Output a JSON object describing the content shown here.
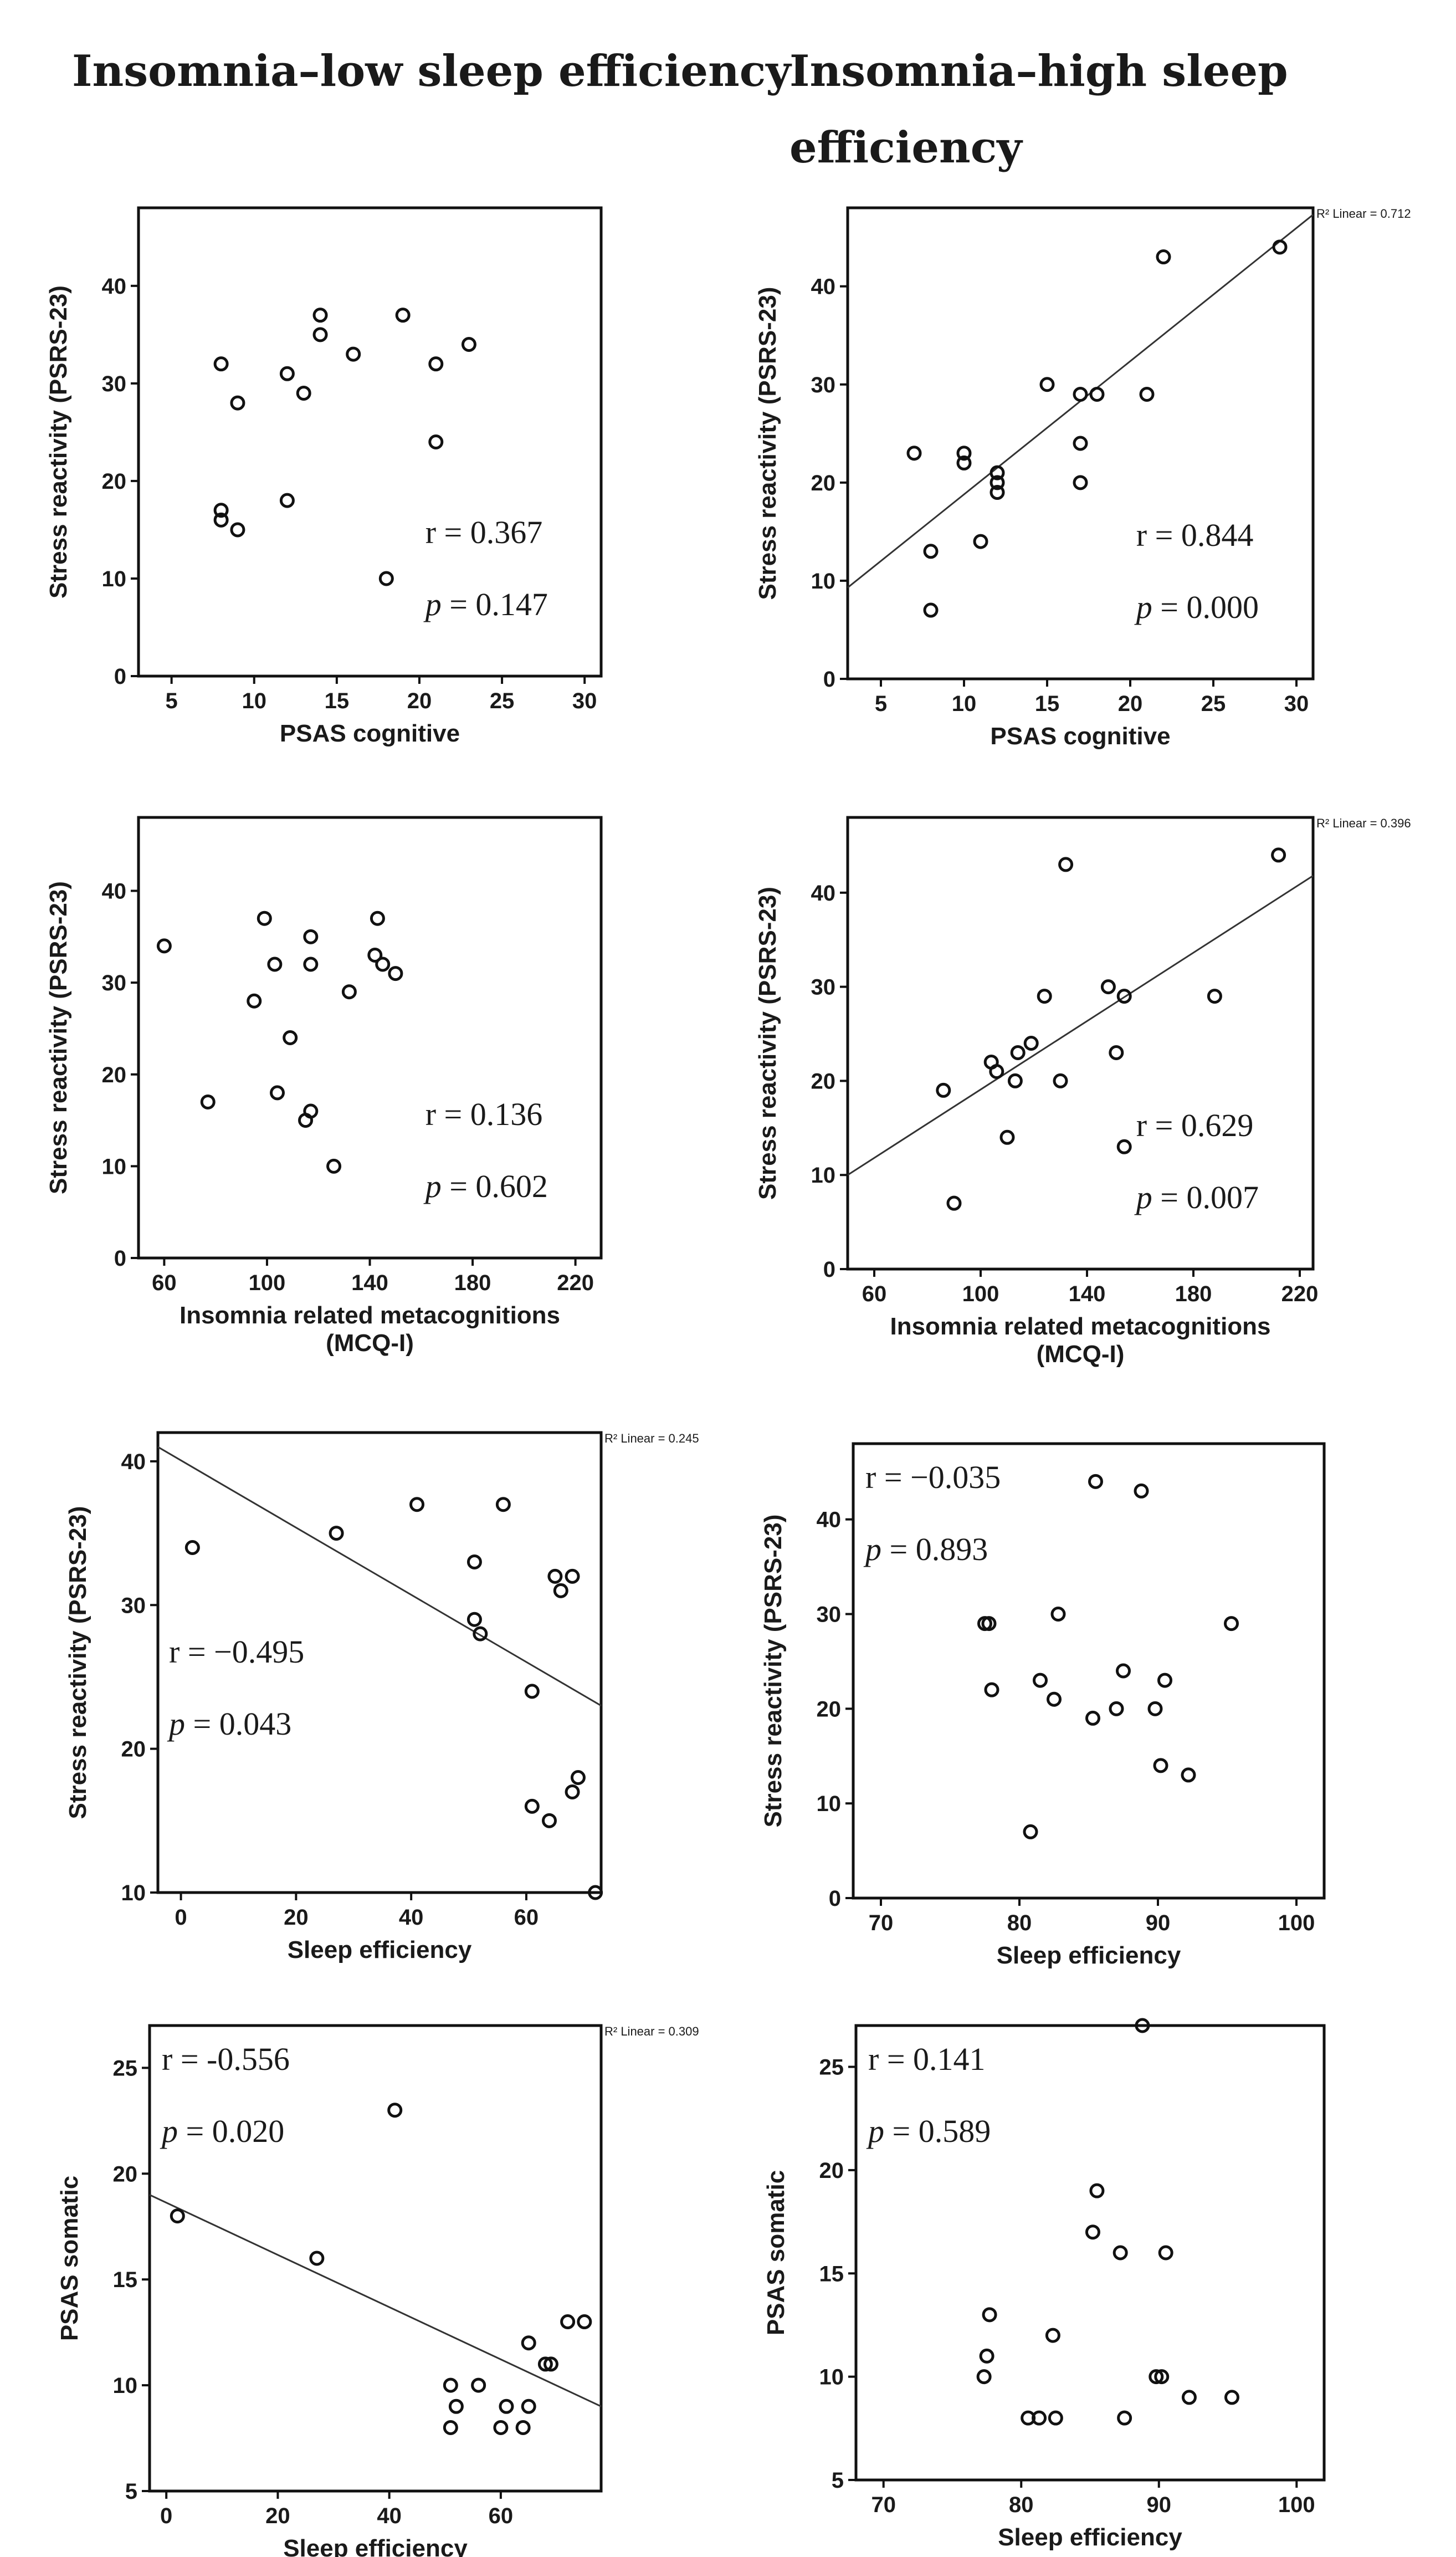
{
  "headers": {
    "left": "Insomnia–low sleep efficiency",
    "right_line1": "Insomnia–high sleep",
    "right_line2": "efficiency"
  },
  "chart_data": [
    {
      "id": "A1",
      "type": "scatter",
      "xlabel": [
        "PSAS cognitive"
      ],
      "ylabel": "Stress reactivity (PSRS-23)",
      "xlim": [
        3,
        31
      ],
      "ylim": [
        0,
        48
      ],
      "xticks": [
        5,
        10,
        15,
        20,
        25,
        30
      ],
      "yticks": [
        0,
        10,
        20,
        30,
        40
      ],
      "points": [
        [
          8,
          32
        ],
        [
          8,
          17
        ],
        [
          8,
          16
        ],
        [
          9,
          28
        ],
        [
          9,
          15
        ],
        [
          12,
          31
        ],
        [
          12,
          18
        ],
        [
          13,
          29
        ],
        [
          14,
          37
        ],
        [
          14,
          35
        ],
        [
          16,
          33
        ],
        [
          18,
          10
        ],
        [
          19,
          37
        ],
        [
          21,
          32
        ],
        [
          21,
          24
        ],
        [
          23,
          34
        ]
      ],
      "r_text": "r = 0.367",
      "p_text": " = 0.147",
      "p_label": "p",
      "stats_pos": "bottom-right"
    },
    {
      "id": "B1",
      "type": "scatter",
      "xlabel": [
        "PSAS cognitive"
      ],
      "ylabel": "Stress reactivity (PSRS-23)",
      "xlim": [
        3,
        31
      ],
      "ylim": [
        0,
        48
      ],
      "xticks": [
        5,
        10,
        15,
        20,
        25,
        30
      ],
      "yticks": [
        0,
        10,
        20,
        30,
        40
      ],
      "points": [
        [
          7,
          23
        ],
        [
          8,
          13
        ],
        [
          8,
          7
        ],
        [
          10,
          23
        ],
        [
          10,
          22
        ],
        [
          11,
          14
        ],
        [
          12,
          21
        ],
        [
          12,
          20
        ],
        [
          12,
          19
        ],
        [
          15,
          30
        ],
        [
          17,
          29
        ],
        [
          17,
          24
        ],
        [
          17,
          20
        ],
        [
          18,
          29
        ],
        [
          21,
          29
        ],
        [
          22,
          43
        ],
        [
          29,
          44
        ]
      ],
      "fit": {
        "x": [
          3,
          31
        ],
        "y": [
          9.3,
          47.3
        ],
        "label": "R² Linear = 0.712"
      },
      "r_text": "r = 0.844",
      "p_text": " = 0.000",
      "p_label": "p",
      "stats_pos": "bottom-right"
    },
    {
      "id": "A2",
      "type": "scatter",
      "xlabel": [
        "Insomnia related metacognitions",
        "(MCQ-I)"
      ],
      "ylabel": "Stress reactivity (PSRS-23)",
      "xlim": [
        50,
        230
      ],
      "ylim": [
        0,
        48
      ],
      "xticks": [
        60,
        100,
        140,
        180,
        220
      ],
      "yticks": [
        0,
        10,
        20,
        30,
        40
      ],
      "points": [
        [
          60,
          34
        ],
        [
          77,
          17
        ],
        [
          95,
          28
        ],
        [
          99,
          37
        ],
        [
          103,
          32
        ],
        [
          104,
          18
        ],
        [
          109,
          24
        ],
        [
          115,
          15
        ],
        [
          117,
          35
        ],
        [
          117,
          32
        ],
        [
          117,
          16
        ],
        [
          126,
          10
        ],
        [
          132,
          29
        ],
        [
          142,
          33
        ],
        [
          143,
          37
        ],
        [
          145,
          32
        ],
        [
          150,
          31
        ]
      ],
      "r_text": "r = 0.136",
      "p_text": " = 0.602",
      "p_label": "p",
      "stats_pos": "bottom-right"
    },
    {
      "id": "B2",
      "type": "scatter",
      "xlabel": [
        "Insomnia related metacognitions",
        "(MCQ-I)"
      ],
      "ylabel": "Stress reactivity (PSRS-23)",
      "xlim": [
        50,
        225
      ],
      "ylim": [
        0,
        48
      ],
      "xticks": [
        60,
        100,
        140,
        180,
        220
      ],
      "yticks": [
        0,
        10,
        20,
        30,
        40
      ],
      "points": [
        [
          86,
          19
        ],
        [
          90,
          7
        ],
        [
          104,
          22
        ],
        [
          106,
          21
        ],
        [
          110,
          14
        ],
        [
          113,
          20
        ],
        [
          114,
          23
        ],
        [
          119,
          24
        ],
        [
          124,
          29
        ],
        [
          130,
          20
        ],
        [
          132,
          43
        ],
        [
          148,
          30
        ],
        [
          151,
          23
        ],
        [
          154,
          29
        ],
        [
          154,
          13
        ],
        [
          188,
          29
        ],
        [
          212,
          44
        ]
      ],
      "fit": {
        "x": [
          50,
          225
        ],
        "y": [
          10.0,
          41.8
        ],
        "label": "R² Linear = 0.396"
      },
      "r_text": "r = 0.629",
      "p_text": " = 0.007",
      "p_label": "p",
      "stats_pos": "bottom-right"
    },
    {
      "id": "A3",
      "type": "scatter",
      "xlabel": [
        "Sleep efficiency"
      ],
      "ylabel": "Stress reactivity (PSRS-23)",
      "xlim": [
        -4,
        73
      ],
      "ylim": [
        10,
        42
      ],
      "xticks": [
        0,
        20,
        40,
        60
      ],
      "yticks": [
        10,
        20,
        30,
        40
      ],
      "points": [
        [
          2,
          34
        ],
        [
          27,
          35
        ],
        [
          41,
          37
        ],
        [
          51,
          33
        ],
        [
          51,
          29
        ],
        [
          52,
          28
        ],
        [
          56,
          37
        ],
        [
          61,
          24
        ],
        [
          61,
          16
        ],
        [
          64,
          15
        ],
        [
          65,
          32
        ],
        [
          66,
          31
        ],
        [
          68,
          32
        ],
        [
          68,
          17
        ],
        [
          69,
          18
        ],
        [
          72,
          10
        ]
      ],
      "fit": {
        "x": [
          -4,
          73
        ],
        "y": [
          41,
          23
        ],
        "label": "R² Linear = 0.245"
      },
      "r_text": "r = −0.495",
      "p_text": " = 0.043",
      "p_label": "p",
      "stats_pos": "left"
    },
    {
      "id": "B3",
      "type": "scatter",
      "xlabel": [
        "Sleep efficiency"
      ],
      "ylabel": "Stress reactivity (PSRS-23)",
      "xlim": [
        68,
        102
      ],
      "ylim": [
        0,
        48
      ],
      "xticks": [
        70,
        80,
        90,
        100
      ],
      "yticks": [
        0,
        10,
        20,
        30,
        40
      ],
      "points": [
        [
          77.5,
          29
        ],
        [
          77.8,
          29
        ],
        [
          78,
          22
        ],
        [
          80.8,
          7
        ],
        [
          81.5,
          23
        ],
        [
          82.5,
          21
        ],
        [
          82.8,
          30
        ],
        [
          85.3,
          19
        ],
        [
          85.5,
          44
        ],
        [
          87,
          20
        ],
        [
          87.5,
          24
        ],
        [
          88.8,
          43
        ],
        [
          89.8,
          20
        ],
        [
          90.2,
          14
        ],
        [
          90.5,
          23
        ],
        [
          92.2,
          13
        ],
        [
          95.3,
          29
        ]
      ],
      "r_text": "r = −0.035",
      "p_text": " = 0.893",
      "p_label": "p",
      "stats_pos": "top-left"
    },
    {
      "id": "A4",
      "type": "scatter",
      "xlabel": [
        "Sleep efficiency"
      ],
      "ylabel": "PSAS somatic",
      "xlim": [
        -3,
        78
      ],
      "ylim": [
        5,
        27
      ],
      "xticks": [
        0,
        20,
        40,
        60
      ],
      "yticks": [
        5,
        10,
        15,
        20,
        25
      ],
      "points": [
        [
          2,
          18
        ],
        [
          27,
          16
        ],
        [
          41,
          23
        ],
        [
          51,
          10
        ],
        [
          51,
          8
        ],
        [
          52,
          9
        ],
        [
          56,
          10
        ],
        [
          60,
          8
        ],
        [
          61,
          9
        ],
        [
          64,
          8
        ],
        [
          65,
          12
        ],
        [
          65,
          9
        ],
        [
          68,
          11
        ],
        [
          69,
          11
        ],
        [
          72,
          13
        ],
        [
          75,
          13
        ]
      ],
      "fit": {
        "x": [
          -3,
          78
        ],
        "y": [
          19,
          9
        ],
        "label": "R² Linear = 0.309"
      },
      "r_text": "r = -0.556",
      "p_text": " = 0.020",
      "p_label": "p",
      "stats_pos": "top-left"
    },
    {
      "id": "B4",
      "type": "scatter",
      "xlabel": [
        "Sleep efficiency"
      ],
      "ylabel": "PSAS somatic",
      "xlim": [
        68,
        102
      ],
      "ylim": [
        5,
        27
      ],
      "xticks": [
        70,
        80,
        90,
        100
      ],
      "yticks": [
        5,
        10,
        15,
        20,
        25
      ],
      "points": [
        [
          77.3,
          10
        ],
        [
          77.5,
          11
        ],
        [
          77.7,
          13
        ],
        [
          80.5,
          8
        ],
        [
          81.3,
          8
        ],
        [
          82.3,
          12
        ],
        [
          82.5,
          8
        ],
        [
          85.2,
          17
        ],
        [
          85.5,
          19
        ],
        [
          87.2,
          16
        ],
        [
          87.5,
          8
        ],
        [
          88.8,
          27
        ],
        [
          89.8,
          10
        ],
        [
          90.2,
          10
        ],
        [
          90.5,
          16
        ],
        [
          92.2,
          9
        ],
        [
          95.3,
          9
        ]
      ],
      "r_text": "r = 0.141",
      "p_text": " = 0.589",
      "p_label": "p",
      "stats_pos": "top-left"
    }
  ]
}
